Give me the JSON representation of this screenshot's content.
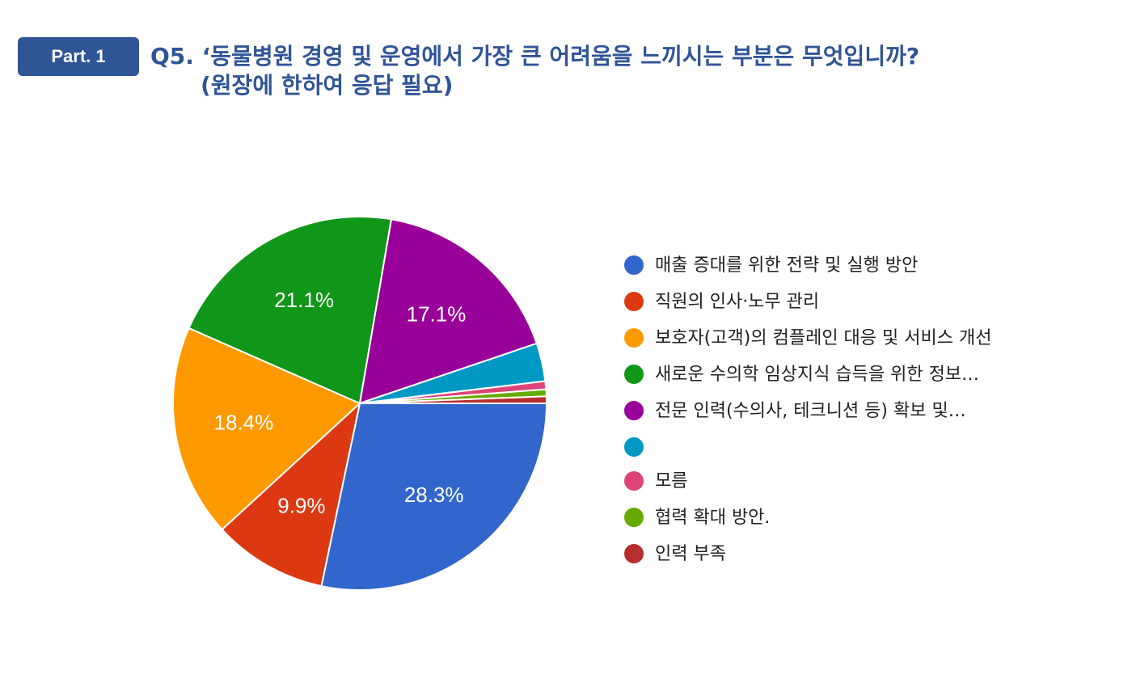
{
  "badge": "Part. 1",
  "title": {
    "line1": "Q5. ‘동물병원 경영 및 운영에서 가장 큰 어려움을 느끼시는 부분은 무엇입니까?",
    "line2": "(원장에 한하여 응답 필요)"
  },
  "chart_data": {
    "type": "pie",
    "categories": [
      "매출 증대를 위한 전략 및 실행 방안",
      "직원의 인사·노무 관리",
      "보호자(고객)의 컴플레인 대응 및 서비스 개선",
      "새로운 수의학 임상지식 습득을 위한 정보…",
      "전문 인력(수의사, 테크니션 등) 확보 및…",
      "",
      "모름",
      "협력 확대 방안.",
      "인력 부족"
    ],
    "values": [
      28.3,
      9.9,
      18.4,
      21.1,
      17.1,
      3.3,
      0.7,
      0.6,
      0.6
    ],
    "data_labels": [
      "28.3%",
      "9.9%",
      "18.4%",
      "21.1%",
      "17.1%",
      "",
      "",
      "",
      ""
    ],
    "colors": [
      "#3366cc",
      "#dc3912",
      "#ff9900",
      "#109618",
      "#990099",
      "#0099c6",
      "#dd4477",
      "#66aa00",
      "#b82e2e"
    ],
    "legend_position": "right",
    "start": "3 o'clock, clockwise"
  }
}
